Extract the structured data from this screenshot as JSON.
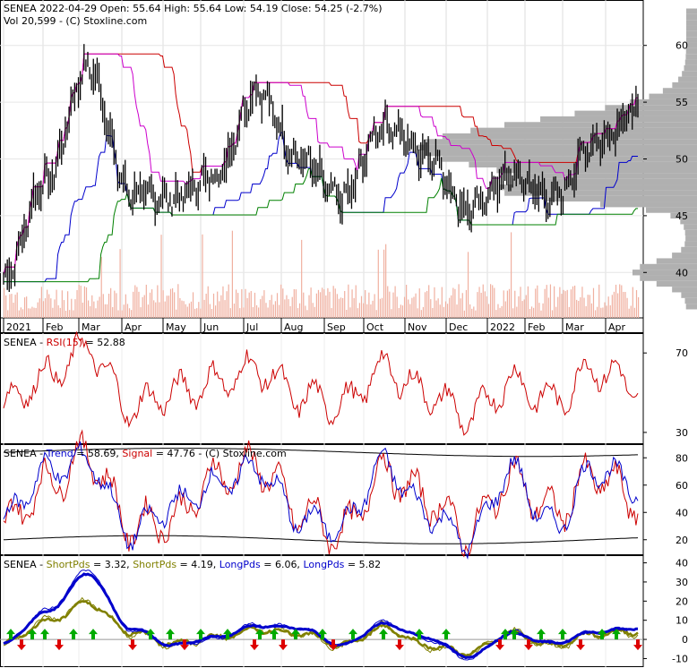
{
  "panels": {
    "price": {
      "header_line1": "SENEA  2022-04-29 Open: 55.64  High: 55.64  Low: 54.19  Close: 54.25 (-2.7%)",
      "header_line2": "Vol 20,599   - (C) Stoxline.com",
      "y_ticks": [
        "60",
        "55",
        "50",
        "45",
        "40"
      ]
    },
    "rsi": {
      "label_prefix": "SENEA - ",
      "label_name": "RSI(15)",
      "label_value": " = 52.88",
      "y_ticks": [
        "70",
        "30"
      ]
    },
    "trend": {
      "label_prefix": "SENEA - ",
      "trend_name": "Trend",
      "trend_value": " = 58.69, ",
      "signal_name": "Signal",
      "signal_value": " = 47.76",
      "credit": "  - (C) Stoxline.com",
      "y_ticks": [
        "80",
        "60",
        "40",
        "20"
      ]
    },
    "pds": {
      "label_prefix": "SENEA - ",
      "short1_name": "ShortPds",
      "short1_value": " = 3.32, ",
      "short2_name": "ShortPds",
      "short2_value": " = 4.19, ",
      "long1_name": "LongPds",
      "long1_value": " = 6.06, ",
      "long2_name": "LongPds",
      "long2_value": " = 5.82",
      "y_ticks": [
        "40",
        "30",
        "20",
        "10",
        "0",
        "-10"
      ]
    }
  },
  "x_labels": [
    "2021",
    "Feb",
    "Mar",
    "Apr",
    "May",
    "Jun",
    "Jul",
    "Aug",
    "Sep",
    "Oct",
    "Nov",
    "Dec",
    "2022",
    "Feb",
    "Mar",
    "Apr"
  ],
  "colors": {
    "price": "#000000",
    "upper_band": "#cc0000",
    "mid_band": "#cc00cc",
    "low_band_blue": "#0000cc",
    "low_band_green": "#008000",
    "volume": "#f0b0a0",
    "volume_profile": "#b0b0b0",
    "rsi": "#cc0000",
    "trend": "#0000cc",
    "signal": "#cc0000",
    "short_pds": "#808000",
    "long_pds": "#0000cc",
    "arrow_up": "#00aa00",
    "arrow_down": "#dd0000"
  },
  "chart_data": [
    {
      "type": "line",
      "title": "SENEA  2022-04-29 Open: 55.64  High: 55.64  Low: 54.19  Close: 54.25 (-2.7%)",
      "x": [
        "2021-01",
        "2021-02",
        "2021-03",
        "2021-04",
        "2021-05",
        "2021-06",
        "2021-07",
        "2021-08",
        "2021-09",
        "2021-10",
        "2021-11",
        "2021-12",
        "2022-01",
        "2022-02",
        "2022-03",
        "2022-04"
      ],
      "series": [
        {
          "name": "Close",
          "values": [
            39.5,
            48.0,
            58.0,
            47.0,
            46.5,
            48.5,
            56.0,
            50.0,
            46.5,
            53.0,
            50.5,
            45.5,
            48.5,
            46.5,
            51.5,
            54.25
          ]
        }
      ],
      "ylim": [
        36,
        64
      ],
      "volume_last": 20599
    },
    {
      "type": "line",
      "title": "RSI(15)",
      "x": [
        "2021-01",
        "2021-02",
        "2021-03",
        "2021-04",
        "2021-05",
        "2021-06",
        "2021-07",
        "2021-08",
        "2021-09",
        "2021-10",
        "2021-11",
        "2021-12",
        "2022-01",
        "2022-02",
        "2022-03",
        "2022-04"
      ],
      "series": [
        {
          "name": "RSI(15)",
          "values": [
            45,
            58,
            72,
            42,
            50,
            55,
            62,
            48,
            44,
            62,
            50,
            38,
            55,
            46,
            62,
            52.88
          ]
        }
      ],
      "ylim": [
        25,
        80
      ]
    },
    {
      "type": "line",
      "title": "Trend / Signal",
      "x": [
        "2021-01",
        "2021-02",
        "2021-03",
        "2021-04",
        "2021-05",
        "2021-06",
        "2021-07",
        "2021-08",
        "2021-09",
        "2021-10",
        "2021-11",
        "2021-12",
        "2022-01",
        "2022-02",
        "2022-03",
        "2022-04"
      ],
      "series": [
        {
          "name": "Trend",
          "values": [
            35,
            70,
            78,
            25,
            45,
            60,
            72,
            35,
            30,
            75,
            40,
            20,
            70,
            30,
            72,
            58.69
          ]
        },
        {
          "name": "Signal",
          "values": [
            30,
            60,
            82,
            30,
            35,
            65,
            75,
            40,
            25,
            70,
            50,
            25,
            65,
            40,
            68,
            47.76
          ]
        }
      ],
      "ylim": [
        10,
        90
      ]
    },
    {
      "type": "line",
      "title": "ShortPds / LongPds",
      "x": [
        "2021-01",
        "2021-02",
        "2021-03",
        "2021-04",
        "2021-05",
        "2021-06",
        "2021-07",
        "2021-08",
        "2021-09",
        "2021-10",
        "2021-11",
        "2021-12",
        "2022-01",
        "2022-02",
        "2022-03",
        "2022-04"
      ],
      "series": [
        {
          "name": "ShortPds",
          "values": [
            -3,
            10,
            20,
            3,
            -3,
            1,
            6,
            3,
            -4,
            7,
            -4,
            -8,
            4,
            -4,
            3,
            3.32
          ]
        },
        {
          "name": "ShortPds",
          "values": [
            -2,
            9,
            19,
            4,
            -2,
            1,
            5,
            3,
            -3,
            6,
            -3,
            -7,
            3,
            -3,
            3,
            4.19
          ]
        },
        {
          "name": "LongPds",
          "values": [
            -2,
            15,
            36,
            5,
            -3,
            0,
            8,
            6,
            -3,
            9,
            0,
            -10,
            4,
            -2,
            4,
            6.06
          ]
        },
        {
          "name": "LongPds",
          "values": [
            -2,
            14,
            34,
            6,
            -3,
            1,
            7,
            6,
            -3,
            8,
            1,
            -9,
            3,
            -2,
            4,
            5.82
          ]
        }
      ],
      "ylim": [
        -14,
        44
      ]
    }
  ]
}
